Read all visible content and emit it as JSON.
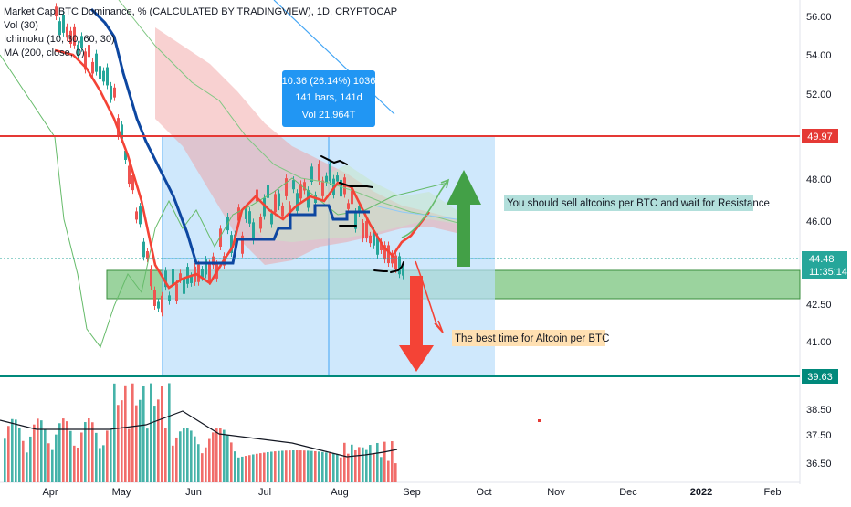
{
  "legend": {
    "title": "Market Cap BTC Dominance, % (CALCULATED BY TRADINGVIEW), 1D, CRYPTOCAP",
    "vol": "Vol (30)",
    "ichimoku": "Ichimoku (10, 30, 60, 30)",
    "ma": "MA (200, close, 0)"
  },
  "price_tags": {
    "resistance": "49.97",
    "current": "44.48",
    "countdown": "11:35:14",
    "support": "39.63"
  },
  "measure_box": {
    "line1": "10.36 (26.14%) 1036",
    "line2": "141 bars, 141d",
    "line3": "Vol 21.964T"
  },
  "annotations": {
    "sell_note": "You should sell altcoins per BTC and wait for Resistance",
    "best_time_note": "The best time for Altcoin per BTC"
  },
  "colors": {
    "resistance_line": "#e53935",
    "support_line": "#00897b",
    "ma_line": "#0d47a1",
    "ichimoku_red": "#f44336",
    "ichimoku_green": "#4caf50",
    "measure_fill": "#bbdefb",
    "zone_fill": "#66bb6a",
    "up_arrow": "#43a047",
    "down_arrow": "#f44336",
    "current_tag": "#26a69a"
  },
  "chart_data": {
    "type": "candlestick",
    "y_axis_ticks": [
      "56.00",
      "54.00",
      "52.00",
      "48.00",
      "46.00",
      "42.50",
      "41.00",
      "38.50",
      "37.50",
      "36.50"
    ],
    "x_axis_ticks": [
      "Apr",
      "May",
      "Jun",
      "Jul",
      "Aug",
      "Sep",
      "Oct",
      "Nov",
      "Dec",
      "2022",
      "Feb"
    ],
    "resistance_level": 49.97,
    "support_level": 39.63,
    "current_price": 44.48,
    "demand_zone": [
      43.0,
      44.0
    ],
    "measured_move": {
      "change": 10.36,
      "change_pct": 26.14,
      "bars": 141,
      "days": 141,
      "volume": "21.964T"
    }
  }
}
